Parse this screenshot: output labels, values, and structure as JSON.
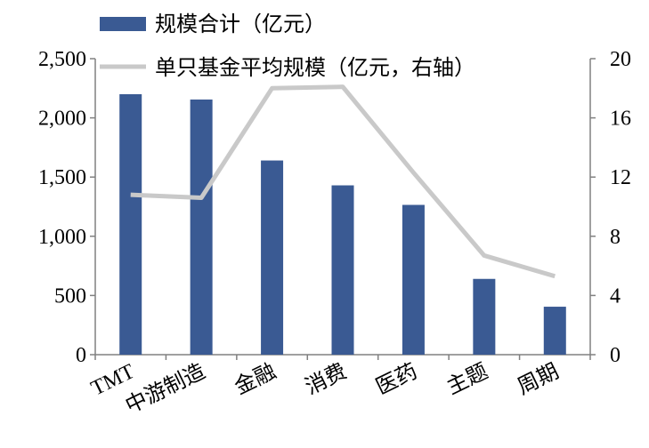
{
  "chart_data": {
    "type": "bar",
    "categories": [
      "TMT",
      "中游制造",
      "金融",
      "消费",
      "医药",
      "主题",
      "周期"
    ],
    "series": [
      {
        "name": "规模合计（亿元）",
        "type": "bar",
        "axis": "left",
        "values": [
          2200,
          2155,
          1640,
          1430,
          1265,
          640,
          405
        ]
      },
      {
        "name": "单只基金平均规模（亿元，右轴）",
        "type": "line",
        "axis": "right",
        "values": [
          10.8,
          10.6,
          18.0,
          18.1,
          12.3,
          6.7,
          5.3
        ]
      }
    ],
    "y_left": {
      "ylim": [
        0,
        2500
      ],
      "ticks": [
        0,
        500,
        1000,
        1500,
        2000,
        2500
      ],
      "tick_labels": [
        "0",
        "500",
        "1,000",
        "1,500",
        "2,000",
        "2,500"
      ]
    },
    "y_right": {
      "ylim": [
        0,
        20
      ],
      "ticks": [
        0,
        4,
        8,
        12,
        16,
        20
      ],
      "tick_labels": [
        "0",
        "4",
        "8",
        "12",
        "16",
        "20"
      ]
    },
    "grid": false,
    "legend_position": "top",
    "colors": {
      "bar": "#3A5A93",
      "line": "#C9C9C9",
      "axis": "#808080"
    }
  }
}
